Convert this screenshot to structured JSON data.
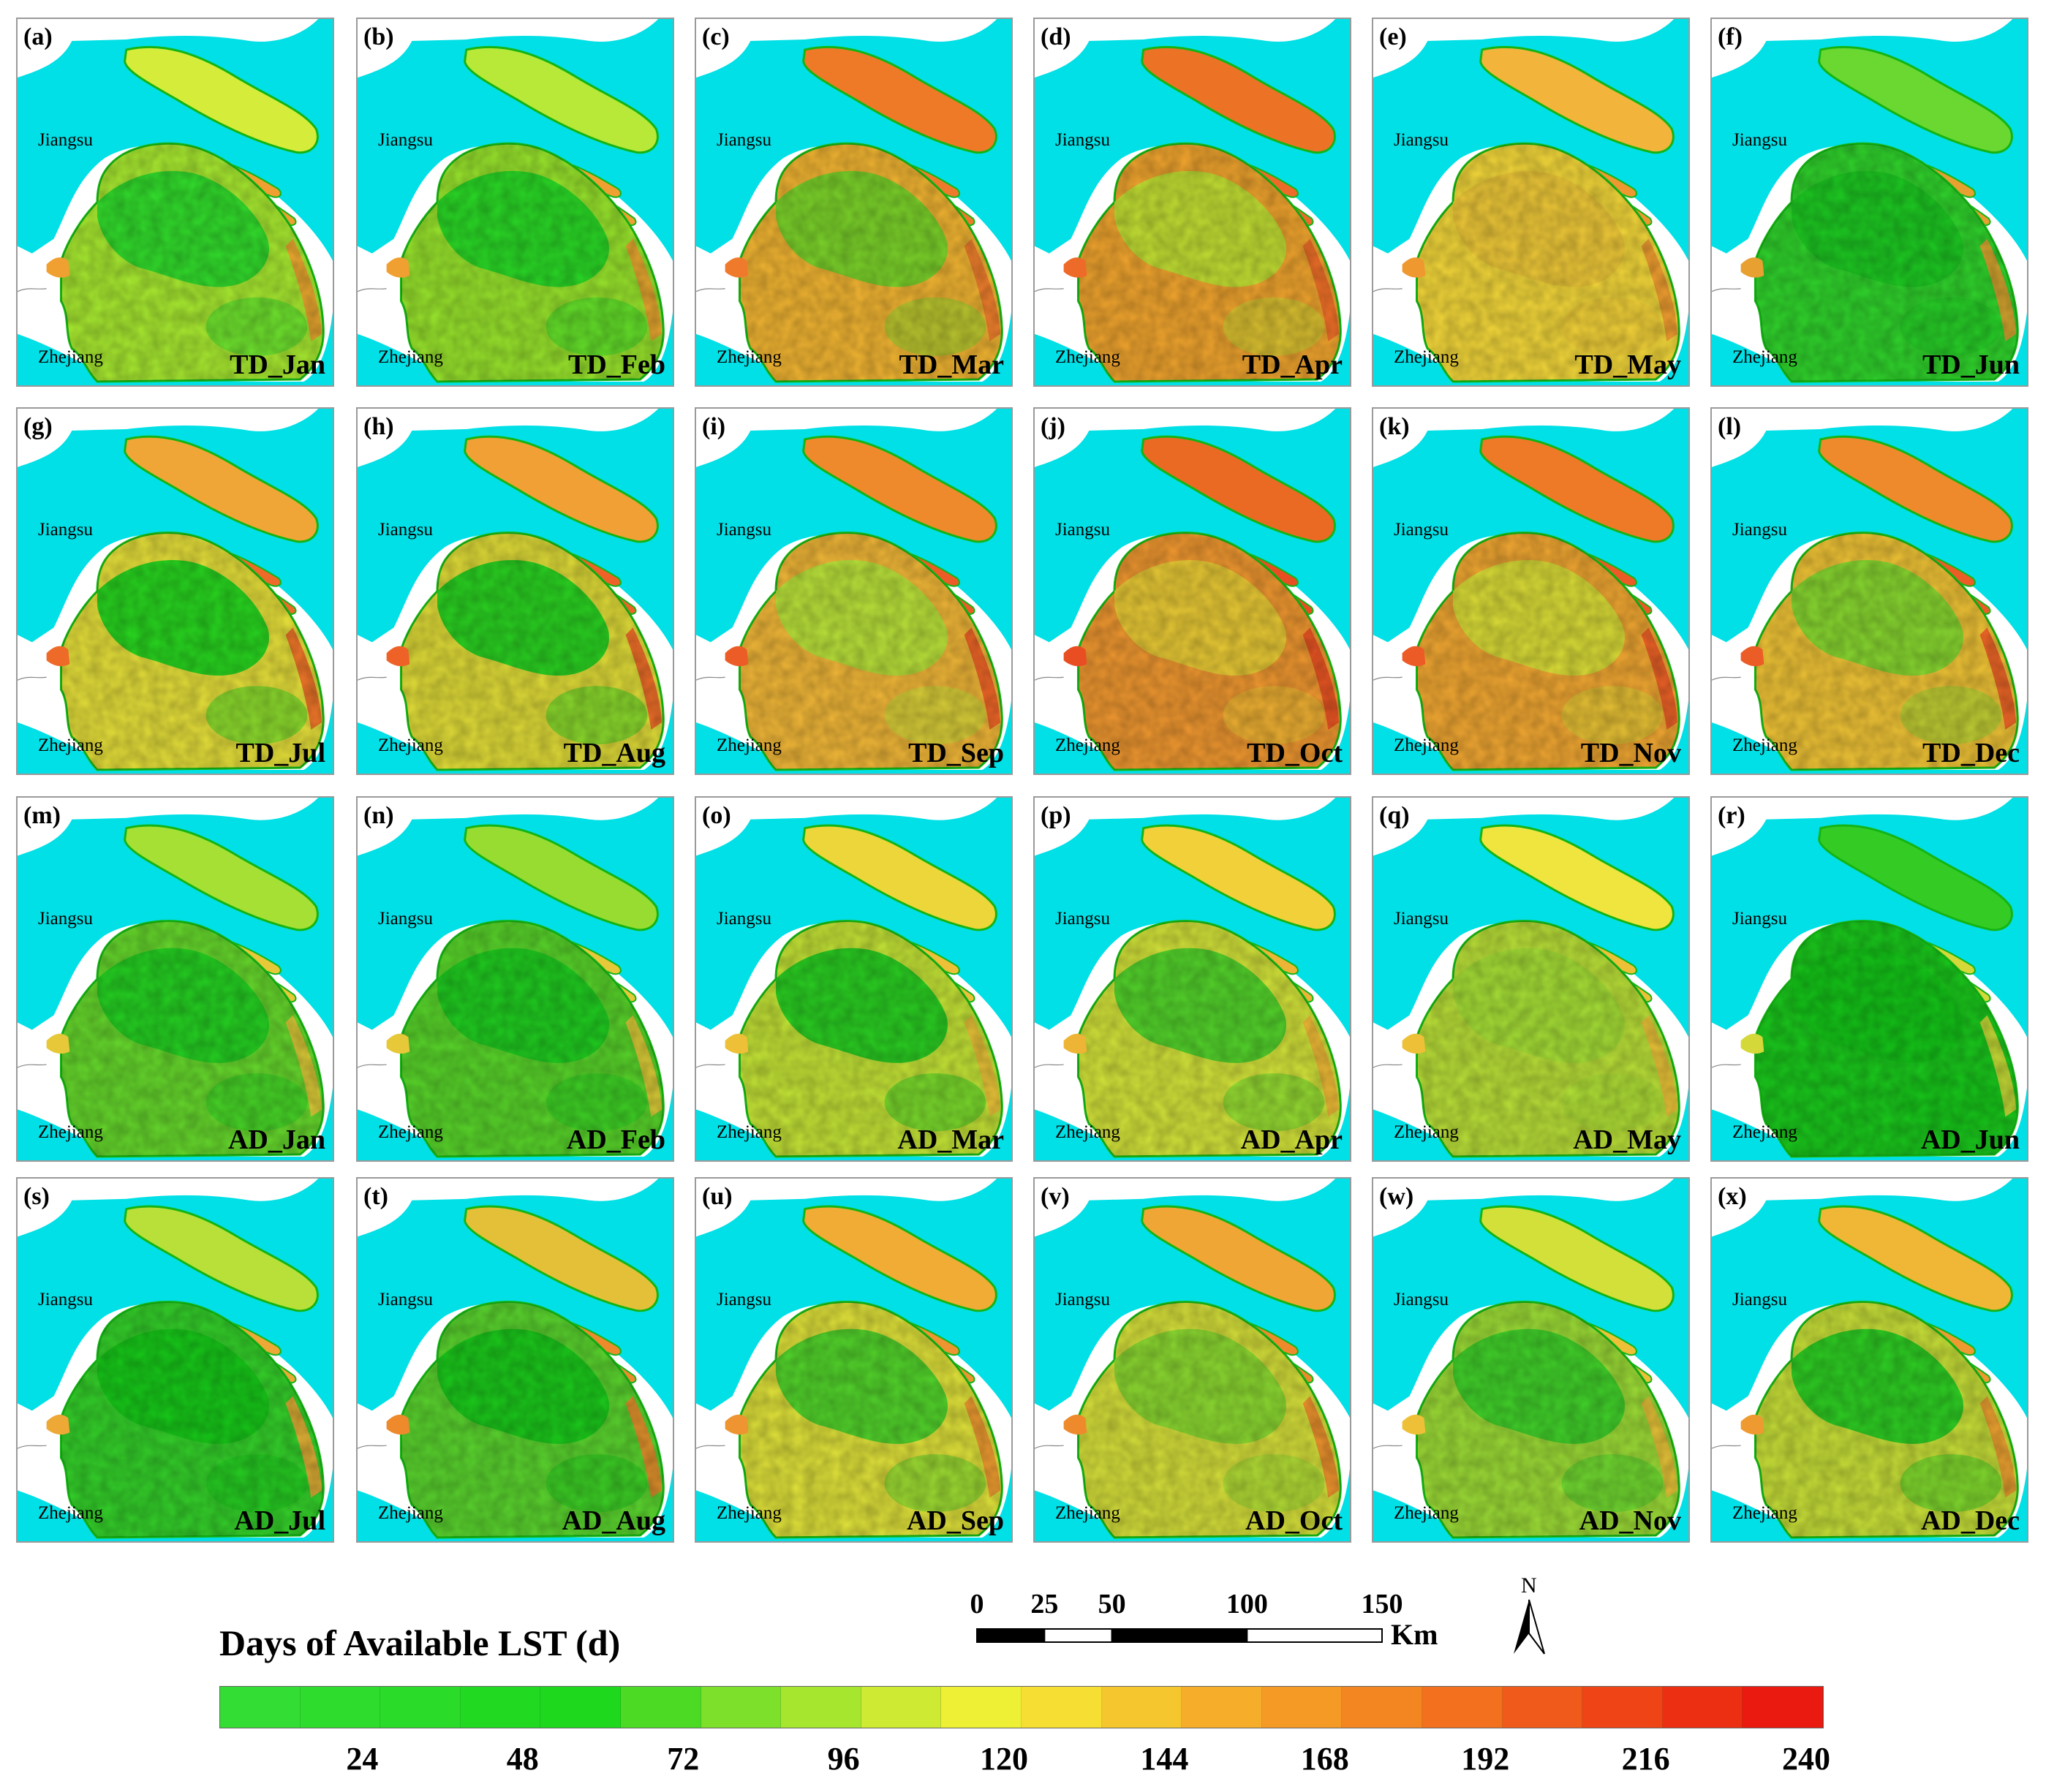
{
  "panels": [
    {
      "label": "(a)",
      "title": "TD_Jan",
      "base": "#a8ea30",
      "core": "#2bdc2c",
      "north": "#d6ec3a",
      "accent": "#f0a030"
    },
    {
      "label": "(b)",
      "title": "TD_Feb",
      "base": "#98e42c",
      "core": "#24d826",
      "north": "#b8e838",
      "accent": "#f0a030"
    },
    {
      "label": "(c)",
      "title": "TD_Mar",
      "base": "#f3b632",
      "core": "#74d42a",
      "north": "#ee7a28",
      "accent": "#f07a2c"
    },
    {
      "label": "(d)",
      "title": "TD_Apr",
      "base": "#f1a52e",
      "core": "#bfe234",
      "north": "#ec7226",
      "accent": "#ee6a28"
    },
    {
      "label": "(e)",
      "title": "TD_May",
      "base": "#f4d83a",
      "core": "#eec838",
      "north": "#f2b43a",
      "accent": "#f09830"
    },
    {
      "label": "(f)",
      "title": "TD_Jun",
      "base": "#30d42c",
      "core": "#1cc822",
      "north": "#6ad830",
      "accent": "#e8a030"
    },
    {
      "label": "(g)",
      "title": "TD_Jul",
      "base": "#e6e03a",
      "core": "#1ed41e",
      "north": "#f0a636",
      "accent": "#ee6a28"
    },
    {
      "label": "(h)",
      "title": "TD_Aug",
      "base": "#e0dc38",
      "core": "#20d020",
      "north": "#f0a034",
      "accent": "#ee6228"
    },
    {
      "label": "(i)",
      "title": "TD_Sep",
      "base": "#f2b838",
      "core": "#b6e43a",
      "north": "#ee8a2c",
      "accent": "#ec5c26"
    },
    {
      "label": "(j)",
      "title": "TD_Oct",
      "base": "#f09830",
      "core": "#e8cc36",
      "north": "#ea6a24",
      "accent": "#e84e22"
    },
    {
      "label": "(k)",
      "title": "TD_Nov",
      "base": "#f2a832",
      "core": "#d8de38",
      "north": "#ee7a28",
      "accent": "#ec5a26"
    },
    {
      "label": "(l)",
      "title": "TD_Dec",
      "base": "#f0c436",
      "core": "#82d830",
      "north": "#ee8a2c",
      "accent": "#ec5c26"
    },
    {
      "label": "(m)",
      "title": "AD_Jan",
      "base": "#66d82c",
      "core": "#22d022",
      "north": "#a6e034",
      "accent": "#e6c838"
    },
    {
      "label": "(n)",
      "title": "AD_Feb",
      "base": "#58d42a",
      "core": "#1ecc20",
      "north": "#98dc32",
      "accent": "#e6c838"
    },
    {
      "label": "(o)",
      "title": "AD_Mar",
      "base": "#c4e436",
      "core": "#22cc22",
      "north": "#ecd63a",
      "accent": "#eec038"
    },
    {
      "label": "(p)",
      "title": "AD_Apr",
      "base": "#d4e43a",
      "core": "#4cd22a",
      "north": "#f2d03a",
      "accent": "#eeb436"
    },
    {
      "label": "(q)",
      "title": "AD_May",
      "base": "#bae038",
      "core": "#a4de36",
      "north": "#f0e43e",
      "accent": "#eec038"
    },
    {
      "label": "(r)",
      "title": "AD_Jun",
      "base": "#1ac81c",
      "core": "#14c418",
      "north": "#34cc24",
      "accent": "#d4d838"
    },
    {
      "label": "(s)",
      "title": "AD_Jul",
      "base": "#34d02a",
      "core": "#16c818",
      "north": "#b8e038",
      "accent": "#eea836"
    },
    {
      "label": "(t)",
      "title": "AD_Aug",
      "base": "#5ad42e",
      "core": "#18c81a",
      "north": "#e4c038",
      "accent": "#ee8a2c"
    },
    {
      "label": "(u)",
      "title": "AD_Sep",
      "base": "#e0e23a",
      "core": "#4ad22a",
      "north": "#f0ac34",
      "accent": "#ee9430"
    },
    {
      "label": "(v)",
      "title": "AD_Oct",
      "base": "#d6e03a",
      "core": "#88d830",
      "north": "#f0a634",
      "accent": "#ee8a2c"
    },
    {
      "label": "(w)",
      "title": "AD_Nov",
      "base": "#9cdc36",
      "core": "#3cd02a",
      "north": "#d4e03a",
      "accent": "#eec038"
    },
    {
      "label": "(x)",
      "title": "AD_Dec",
      "base": "#c8e038",
      "core": "#26cc22",
      "north": "#f0b636",
      "accent": "#ee9a30"
    }
  ],
  "region_labels": {
    "jiangsu": "Jiangsu",
    "zhejiang": "Zhejiang"
  },
  "legend": {
    "title": "Days of Available LST (d)",
    "ticks": [
      "24",
      "48",
      "72",
      "96",
      "120",
      "144",
      "168",
      "192",
      "216",
      "240"
    ],
    "tick_values": [
      24,
      48,
      72,
      96,
      120,
      144,
      168,
      192,
      216,
      240
    ],
    "max_value": 240,
    "colors": [
      "#33dd33",
      "#2edc2e",
      "#2adb2a",
      "#22d922",
      "#1ed81e",
      "#4dda24",
      "#7de02a",
      "#a7e62e",
      "#cfea32",
      "#eef036",
      "#f6de32",
      "#f6c62e",
      "#f6ae2a",
      "#f69a26",
      "#f48622",
      "#f2701e",
      "#f05a1a",
      "#ee4416",
      "#ec2e12",
      "#ea1a10"
    ]
  },
  "scale_bar": {
    "labels": [
      "0",
      "25",
      "50",
      "100",
      "150"
    ],
    "values": [
      0,
      25,
      50,
      100,
      150
    ],
    "unit": "Km"
  },
  "north_arrow": {
    "letter": "N"
  },
  "colors": {
    "sea": "#00e0e6",
    "panel_border": "#9a9a9a",
    "coast_edge": "#14b414"
  }
}
